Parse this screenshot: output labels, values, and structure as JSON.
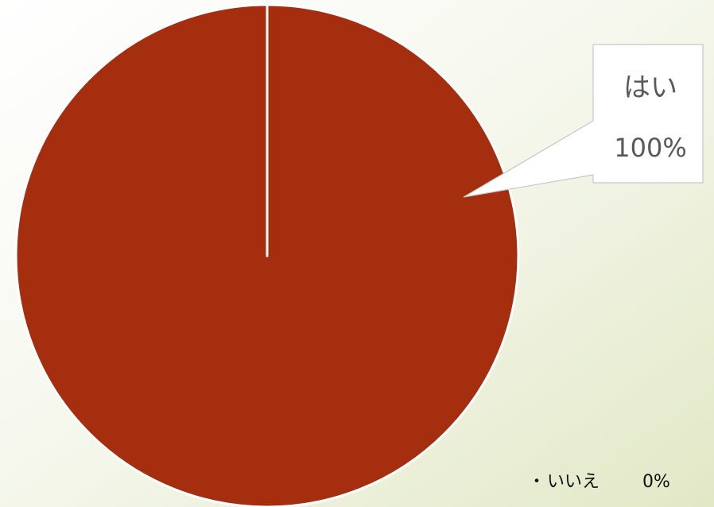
{
  "chart_data": {
    "type": "pie",
    "categories": [
      "はい",
      "いいえ"
    ],
    "values": [
      100,
      0
    ],
    "value_labels": [
      "100%",
      "0%"
    ],
    "colors": [
      "#a52e0f",
      "#ffffff"
    ]
  }
}
